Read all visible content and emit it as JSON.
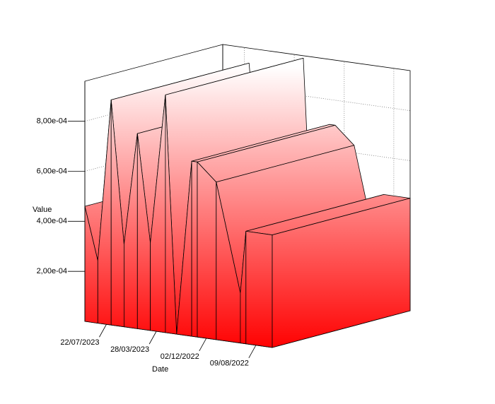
{
  "chart_data": {
    "type": "ribbon3d",
    "x_label": "Date",
    "y_label": "Value",
    "x": [
      "02/07/2022",
      "01/09/2022",
      "14/09/2022",
      "09/11/2022",
      "23/12/2022",
      "05/01/2023",
      "09/02/2023",
      "07/03/2023",
      "11/04/2023",
      "11/05/2023",
      "11/06/2023",
      "11/07/2023",
      "11/08/2023",
      "10/09/2023"
    ],
    "values": [
      0.00045,
      0.00045,
      0.0002,
      0.00063,
      0.0007,
      0.0007,
      0,
      0.00095,
      0.00035,
      0.00078,
      0.00033,
      0.0009,
      0.00025,
      0.00046
    ],
    "color": "#ff0000",
    "xlim": [
      "02/07/2022",
      "10/09/2023"
    ],
    "xticks": [
      "09/08/2022",
      "02/12/2022",
      "28/03/2023",
      "22/07/2023"
    ],
    "ylim": [
      0,
      0.00096
    ],
    "yticks": [
      {
        "value": 0.0002,
        "label": "2,00e-04"
      },
      {
        "value": 0.0004,
        "label": "4,00e-04"
      },
      {
        "value": 0.0006,
        "label": "6,00e-04"
      },
      {
        "value": 0.0008,
        "label": "8,00e-04"
      }
    ],
    "grid": true
  }
}
